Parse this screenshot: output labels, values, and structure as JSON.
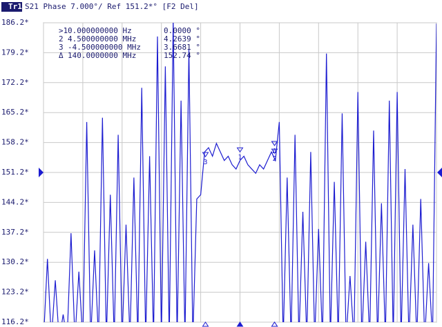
{
  "chart_data": {
    "type": "line",
    "tag": "Tr1",
    "title": "S21 Phase 7.000°/ Ref 151.2*° [F2 Del]",
    "color": "#1c1cd0",
    "grid": true,
    "ref_level": 151.2,
    "xlim": [
      -25.6,
      25.6
    ],
    "xticks": [
      -25.6,
      -20.48,
      -15.36,
      -10.24,
      -5.12,
      0,
      5.12,
      10.24,
      15.36,
      20.48,
      25.6
    ],
    "ylim": [
      116.2,
      186.2
    ],
    "yticks": [
      {
        "value": 116.2,
        "label": "116.2*"
      },
      {
        "value": 123.2,
        "label": "123.2*"
      },
      {
        "value": 130.2,
        "label": "130.2*"
      },
      {
        "value": 137.2,
        "label": "137.2*"
      },
      {
        "value": 144.2,
        "label": "144.2*"
      },
      {
        "value": 151.2,
        "label": "151.2*"
      },
      {
        "value": 158.2,
        "label": "158.2*"
      },
      {
        "value": 165.2,
        "label": "165.2*"
      },
      {
        "value": 172.2,
        "label": "172.2*"
      },
      {
        "value": 179.2,
        "label": "179.2*"
      },
      {
        "value": 186.2,
        "label": "186.2*"
      }
    ],
    "marker_table": [
      [
        ">1",
        "0.000000000 Hz",
        "0.0000 °"
      ],
      [
        "2",
        "4.500000000 MHz",
        "4.2639 °"
      ],
      [
        "3",
        "-4.500000000 MHz",
        "3.6681 °"
      ],
      [
        "Δ",
        "140.0000000 MHz",
        "152.74 °"
      ]
    ],
    "trace_markers": [
      {
        "label": "1",
        "x": 0,
        "y": 156.0
      },
      {
        "label": "2",
        "x": 4.5,
        "y": 155.7
      },
      {
        "label": "3",
        "x": -4.5,
        "y": 154.9
      },
      {
        "label": "Δ",
        "x": 4.5,
        "y": 157.5
      }
    ],
    "x": [
      -25.6,
      -25.088,
      -24.576,
      -24.064,
      -23.552,
      -23.04,
      -22.528,
      -22.016,
      -21.504,
      -20.992,
      -20.48,
      -19.968,
      -19.456,
      -18.944,
      -18.432,
      -17.92,
      -17.408,
      -16.896,
      -16.384,
      -15.872,
      -15.36,
      -14.848,
      -14.336,
      -13.824,
      -13.312,
      -12.8,
      -12.288,
      -11.776,
      -11.264,
      -10.752,
      -10.24,
      -9.728,
      -9.216,
      -8.704,
      -8.192,
      -7.68,
      -7.168,
      -6.656,
      -6.144,
      -5.632,
      -5.12,
      -4.608,
      -4.096,
      -3.584,
      -3.072,
      -2.56,
      -2.048,
      -1.536,
      -1.024,
      -0.512,
      0,
      0.512,
      1.024,
      1.536,
      2.048,
      2.56,
      3.072,
      3.584,
      4.096,
      4.608,
      5.12,
      5.632,
      6.144,
      6.656,
      7.168,
      7.68,
      8.192,
      8.704,
      9.216,
      9.728,
      10.24,
      10.752,
      11.264,
      11.776,
      12.288,
      12.8,
      13.312,
      13.824,
      14.336,
      14.848,
      15.36,
      15.872,
      16.384,
      16.896,
      17.408,
      17.92,
      18.432,
      18.944,
      19.456,
      19.968,
      20.48,
      20.992,
      21.504,
      22.016,
      22.528,
      23.04,
      23.552,
      24.064,
      24.576,
      25.088,
      25.6
    ],
    "values": [
      112,
      131,
      112,
      126,
      112,
      118,
      112,
      137,
      112,
      128,
      112,
      163,
      112,
      133,
      112,
      164,
      112,
      146,
      112,
      160,
      112,
      139,
      112,
      150,
      112,
      171,
      112,
      155,
      112,
      183,
      112,
      176,
      112,
      187,
      112,
      168,
      112,
      180,
      112,
      145,
      146,
      156,
      157,
      155,
      158,
      156,
      154,
      155,
      153,
      152,
      154,
      155,
      153,
      152,
      151,
      153,
      152,
      154,
      156,
      154,
      163,
      112,
      150,
      112,
      160,
      112,
      142,
      112,
      156,
      112,
      138,
      112,
      179,
      112,
      149,
      112,
      165,
      112,
      127,
      112,
      170,
      112,
      135,
      112,
      161,
      112,
      144,
      112,
      168,
      112,
      170,
      112,
      152,
      112,
      139,
      112,
      145,
      112,
      130,
      112,
      186
    ]
  }
}
